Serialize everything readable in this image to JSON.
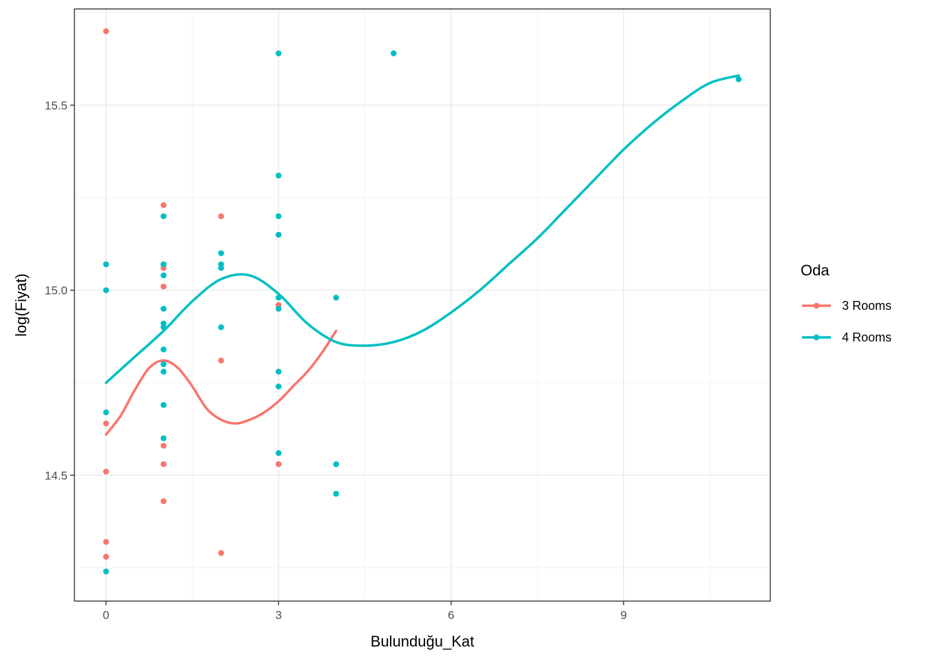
{
  "chart_data": {
    "type": "scatter",
    "title": "",
    "xlabel": "Bulunduğu_Kat",
    "ylabel": "log(Fiyat)",
    "xlim": [
      -0.55,
      11.55
    ],
    "ylim": [
      14.16,
      15.76
    ],
    "x_ticks": [
      0,
      3,
      6,
      9
    ],
    "x_tick_labels": [
      "0",
      "3",
      "6",
      "9"
    ],
    "x_minor_ticks": [
      1.5,
      4.5,
      7.5,
      10.5
    ],
    "y_ticks": [
      14.5,
      15.0,
      15.5
    ],
    "y_tick_labels": [
      "14.5",
      "15.0",
      "15.5"
    ],
    "y_minor_ticks": [
      14.25,
      14.75,
      15.25,
      15.75
    ],
    "grid": true,
    "legend": {
      "title": "Oda",
      "position": "right"
    },
    "series": [
      {
        "name": "3 Rooms",
        "color": "#F8766D",
        "points": [
          [
            0,
            15.7
          ],
          [
            0,
            14.64
          ],
          [
            0,
            14.51
          ],
          [
            0,
            14.32
          ],
          [
            0,
            14.28
          ],
          [
            1,
            15.23
          ],
          [
            1,
            15.06
          ],
          [
            1,
            15.01
          ],
          [
            1,
            14.58
          ],
          [
            1,
            14.53
          ],
          [
            1,
            14.43
          ],
          [
            2,
            15.2
          ],
          [
            2,
            14.81
          ],
          [
            2,
            14.29
          ],
          [
            3,
            14.96
          ],
          [
            3,
            14.53
          ]
        ],
        "smooth": [
          [
            0,
            14.61
          ],
          [
            0.25,
            14.66
          ],
          [
            0.5,
            14.73
          ],
          [
            0.75,
            14.79
          ],
          [
            1,
            14.81
          ],
          [
            1.25,
            14.79
          ],
          [
            1.5,
            14.74
          ],
          [
            1.75,
            14.68
          ],
          [
            2,
            14.65
          ],
          [
            2.25,
            14.64
          ],
          [
            2.5,
            14.65
          ],
          [
            2.75,
            14.67
          ],
          [
            3,
            14.7
          ],
          [
            3.25,
            14.74
          ],
          [
            3.5,
            14.78
          ],
          [
            3.75,
            14.83
          ],
          [
            4,
            14.89
          ]
        ]
      },
      {
        "name": "4 Rooms",
        "color": "#00BFC4",
        "points": [
          [
            0,
            15.07
          ],
          [
            0,
            15.0
          ],
          [
            0,
            14.67
          ],
          [
            0,
            14.24
          ],
          [
            1,
            15.2
          ],
          [
            1,
            15.07
          ],
          [
            1,
            15.04
          ],
          [
            1,
            14.95
          ],
          [
            1,
            14.91
          ],
          [
            1,
            14.9
          ],
          [
            1,
            14.84
          ],
          [
            1,
            14.8
          ],
          [
            1,
            14.78
          ],
          [
            1,
            14.69
          ],
          [
            1,
            14.6
          ],
          [
            2,
            15.1
          ],
          [
            2,
            15.07
          ],
          [
            2,
            15.06
          ],
          [
            2,
            14.9
          ],
          [
            3,
            15.64
          ],
          [
            3,
            15.31
          ],
          [
            3,
            15.2
          ],
          [
            3,
            15.15
          ],
          [
            3,
            14.98
          ],
          [
            3,
            14.95
          ],
          [
            3,
            14.78
          ],
          [
            3,
            14.74
          ],
          [
            3,
            14.56
          ],
          [
            4,
            14.98
          ],
          [
            4,
            14.53
          ],
          [
            4,
            14.45
          ],
          [
            5,
            15.64
          ],
          [
            11,
            15.57
          ]
        ],
        "smooth": [
          [
            0,
            14.75
          ],
          [
            0.5,
            14.82
          ],
          [
            1,
            14.89
          ],
          [
            1.5,
            14.97
          ],
          [
            2,
            15.03
          ],
          [
            2.5,
            15.04
          ],
          [
            3,
            14.99
          ],
          [
            3.5,
            14.91
          ],
          [
            4,
            14.86
          ],
          [
            4.5,
            14.85
          ],
          [
            5,
            14.86
          ],
          [
            5.5,
            14.89
          ],
          [
            6,
            14.94
          ],
          [
            6.5,
            15.0
          ],
          [
            7,
            15.07
          ],
          [
            7.5,
            15.14
          ],
          [
            8,
            15.22
          ],
          [
            8.5,
            15.3
          ],
          [
            9,
            15.38
          ],
          [
            9.5,
            15.45
          ],
          [
            10,
            15.51
          ],
          [
            10.5,
            15.56
          ],
          [
            11,
            15.58
          ]
        ]
      }
    ]
  }
}
